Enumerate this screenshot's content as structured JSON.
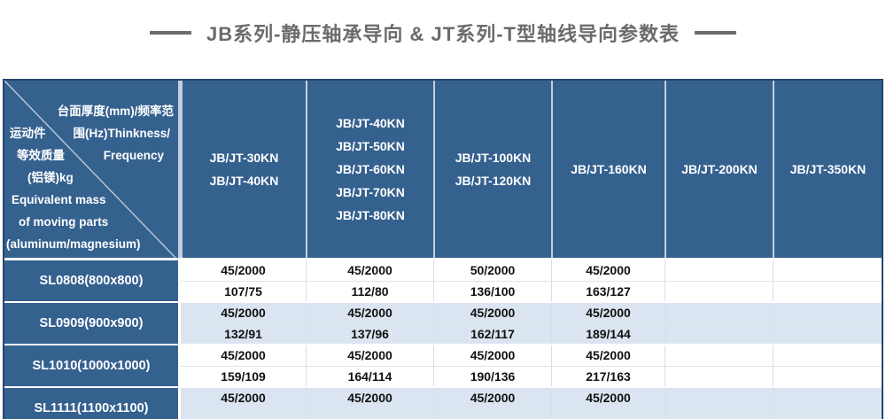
{
  "title": {
    "text": "JB系列-静压轴承导向 & JT系列-T型轴线导向参数表"
  },
  "colors": {
    "header_blue": "#35618f",
    "row_alt_blue": "#dbe5f1",
    "row_white": "#ffffff",
    "outer_border": "#24466e",
    "title_gray": "#6b6b6b",
    "data_text": "#111111",
    "header_text": "#ffffff"
  },
  "table": {
    "corner": {
      "lines": [
        {
          "left": "",
          "right": "台面厚度(mm)/频率范"
        },
        {
          "left": "运动件",
          "right": "围(Hz)Thinkness/"
        },
        {
          "left": "等效质量",
          "right": "Frequency"
        },
        {
          "left": "(铝镁)kg",
          "right": ""
        },
        {
          "left": "Equivalent mass",
          "right": ""
        },
        {
          "left": "of moving parts",
          "right": ""
        },
        {
          "left": "(aluminum/magnesium)",
          "right": ""
        }
      ]
    },
    "column_headers": [
      [
        "JB/JT-30KN",
        "JB/JT-40KN"
      ],
      [
        "JB/JT-40KN",
        "JB/JT-50KN",
        "JB/JT-60KN",
        "JB/JT-70KN",
        "JB/JT-80KN"
      ],
      [
        "JB/JT-100KN",
        "JB/JT-120KN"
      ],
      [
        "JB/JT-160KN"
      ],
      [
        "JB/JT-200KN"
      ],
      [
        "JB/JT-350KN"
      ]
    ],
    "groups": [
      {
        "model": "SL0808(800x800)",
        "rows": [
          [
            "45/2000",
            "45/2000",
            "50/2000",
            "45/2000",
            "",
            ""
          ],
          [
            "107/75",
            "112/80",
            "136/100",
            "163/127",
            "",
            ""
          ]
        ]
      },
      {
        "model": "SL0909(900x900)",
        "rows": [
          [
            "45/2000",
            "45/2000",
            "45/2000",
            "45/2000",
            "",
            ""
          ],
          [
            "132/91",
            "137/96",
            "162/117",
            "189/144",
            "",
            ""
          ]
        ]
      },
      {
        "model": "SL1010(1000x1000)",
        "rows": [
          [
            "45/2000",
            "45/2000",
            "45/2000",
            "45/2000",
            "",
            ""
          ],
          [
            "159/109",
            "164/114",
            "190/136",
            "217/163",
            "",
            ""
          ]
        ]
      },
      {
        "model": "SL1111(1100x1100)",
        "rows": [
          [
            "45/2000",
            "45/2000",
            "45/2000",
            "45/2000",
            "",
            ""
          ],
          [
            "",
            "",
            "",
            "",
            "",
            ""
          ]
        ]
      }
    ]
  }
}
